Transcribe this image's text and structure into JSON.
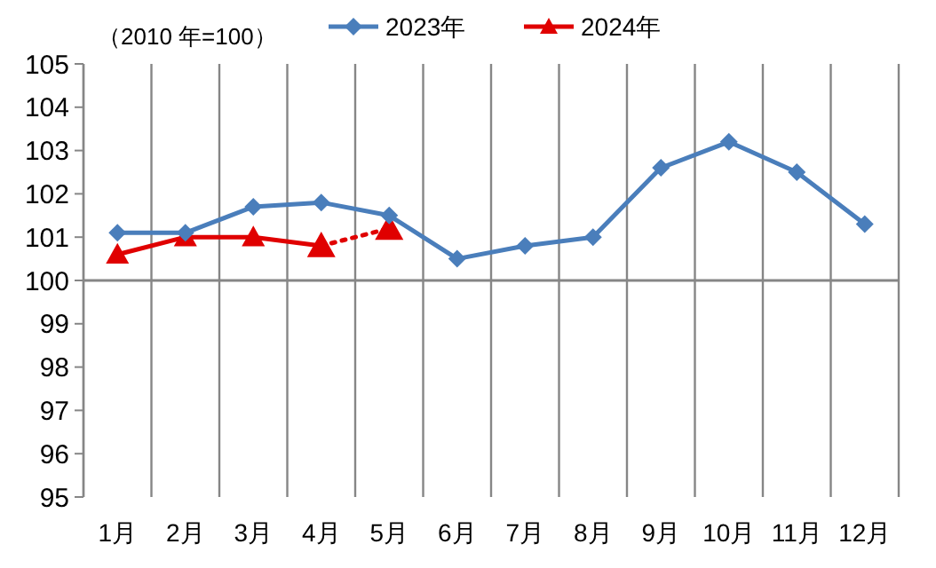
{
  "chart_data": {
    "type": "line",
    "ylabel": "（2010 年=100）",
    "categories": [
      "1月",
      "2月",
      "3月",
      "4月",
      "5月",
      "6月",
      "7月",
      "8月",
      "9月",
      "10月",
      "11月",
      "12月"
    ],
    "series": [
      {
        "name": "2023年",
        "color": "#4a7ebb",
        "marker": "diamond",
        "values": [
          101.1,
          101.1,
          101.7,
          101.8,
          101.5,
          100.5,
          100.8,
          101.0,
          102.6,
          103.2,
          102.5,
          101.3
        ]
      },
      {
        "name": "2024年",
        "color": "#e00000",
        "marker": "triangle",
        "values": [
          100.6,
          101.0,
          101.0,
          100.8,
          null,
          null,
          null,
          null,
          null,
          null,
          null,
          null
        ]
      },
      {
        "color": "#e00000",
        "marker": "triangle",
        "line_style": "dotted",
        "values": [
          null,
          null,
          null,
          100.8,
          101.2,
          null,
          null,
          null,
          null,
          null,
          null,
          null
        ]
      }
    ],
    "ylim": [
      95,
      105
    ],
    "yticks": [
      95,
      96,
      97,
      98,
      99,
      100,
      101,
      102,
      103,
      104,
      105
    ],
    "grid": "x",
    "legend": "top",
    "ref_lines": [
      {
        "axis": "y",
        "value": 100,
        "color": "#868686"
      }
    ]
  }
}
